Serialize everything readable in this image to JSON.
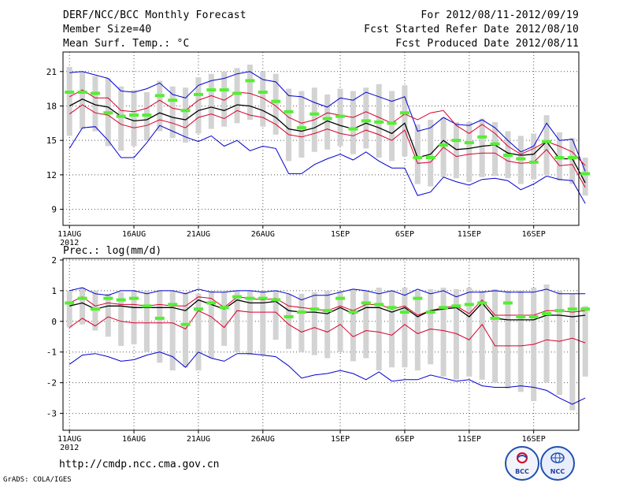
{
  "header": {
    "title": "DERF/NCC/BCC Monthly Forecast",
    "member_size": "Member Size=40",
    "variable": "Mean Surf. Temp.: °C",
    "period": "For 2012/08/11-2012/09/19",
    "started": "Fcst Started Refer Date 2012/08/10",
    "produced": "Fcst Produced Date 2012/08/11"
  },
  "precip_label": "Prec.: log(mm/d)",
  "footer": {
    "url": "http://cmdp.ncc.cma.gov.cn",
    "credit": "GrADS: COLA/IGES",
    "logo_bcc": "BCC",
    "logo_ncc": "NCC"
  },
  "colors": {
    "frame": "#000000",
    "grid": "#555555",
    "spread_bar": "#d3d3d3",
    "outer_bounds": "#0000d0",
    "inner_bounds": "#d8002a",
    "ensemble_mean": "#000000",
    "observed_marker": "#55ee33"
  },
  "chart_data": [
    {
      "type": "line",
      "title": "Mean Surf. Temp.",
      "ylabel": "°C",
      "ylim": [
        7.6,
        22.7
      ],
      "yticks": [
        9,
        12,
        15,
        18,
        21
      ],
      "xlim": [
        -0.5,
        39.5
      ],
      "xticks": [
        {
          "day": 0,
          "label": "11AUG",
          "sublabel": "2012"
        },
        {
          "day": 5,
          "label": "16AUG"
        },
        {
          "day": 10,
          "label": "21AUG"
        },
        {
          "day": 15,
          "label": "26AUG"
        },
        {
          "day": 21,
          "label": "1SEP"
        },
        {
          "day": 26,
          "label": "6SEP"
        },
        {
          "day": 31,
          "label": "11SEP"
        },
        {
          "day": 36,
          "label": "16SEP"
        }
      ],
      "grid": true,
      "series": [
        {
          "name": "ensemble max",
          "values": [
            20.9,
            21.0,
            20.7,
            20.4,
            19.3,
            19.2,
            19.5,
            20.0,
            19.0,
            18.7,
            19.8,
            20.2,
            20.4,
            20.8,
            21.0,
            20.3,
            20.1,
            18.9,
            18.8,
            18.3,
            17.9,
            18.7,
            18.5,
            19.2,
            18.8,
            18.4,
            18.8,
            15.8,
            16.1,
            17.0,
            16.4,
            16.3,
            16.8,
            16.1,
            15.0,
            14.0,
            14.5,
            16.5,
            15.0,
            15.1,
            12.3
          ]
        },
        {
          "name": "upper envelope",
          "values": [
            18.8,
            19.4,
            18.7,
            18.7,
            17.6,
            17.5,
            17.8,
            18.5,
            17.8,
            17.6,
            18.5,
            18.9,
            18.5,
            19.2,
            19.1,
            18.7,
            18.0,
            17.0,
            16.5,
            16.8,
            17.4,
            17.2,
            17.0,
            17.5,
            17.0,
            16.5,
            17.3,
            16.8,
            17.4,
            17.6,
            16.3,
            15.6,
            16.4,
            15.6,
            14.5,
            13.8,
            14.3,
            14.9,
            14.5,
            14.0,
            12.8
          ]
        },
        {
          "name": "ensemble mean",
          "values": [
            18.0,
            18.6,
            18.1,
            17.9,
            17.1,
            16.7,
            16.8,
            17.4,
            17.0,
            16.8,
            17.6,
            17.9,
            17.6,
            18.1,
            18.0,
            17.6,
            17.0,
            16.0,
            15.8,
            16.1,
            16.7,
            16.3,
            16.0,
            16.5,
            16.1,
            15.6,
            16.5,
            13.5,
            13.8,
            15.0,
            14.2,
            14.3,
            14.5,
            14.6,
            13.9,
            13.7,
            13.8,
            14.9,
            13.4,
            13.4,
            11.3
          ]
        },
        {
          "name": "lower envelope",
          "values": [
            17.3,
            18.1,
            17.4,
            17.2,
            16.4,
            16.1,
            16.3,
            16.8,
            16.5,
            16.1,
            17.0,
            17.3,
            16.9,
            17.6,
            17.2,
            17.0,
            16.4,
            15.5,
            15.3,
            15.6,
            16.0,
            15.6,
            15.4,
            15.9,
            15.5,
            15.0,
            15.9,
            13.0,
            13.1,
            14.4,
            13.6,
            13.8,
            13.9,
            13.9,
            13.2,
            13.0,
            13.1,
            14.2,
            12.8,
            12.9,
            10.9
          ]
        },
        {
          "name": "ensemble min",
          "values": [
            14.3,
            16.1,
            16.2,
            15.0,
            13.5,
            13.5,
            14.8,
            16.3,
            15.8,
            15.3,
            14.9,
            15.4,
            14.5,
            15.0,
            14.1,
            14.5,
            14.3,
            12.1,
            12.1,
            12.9,
            13.4,
            13.8,
            13.3,
            14.0,
            13.2,
            12.6,
            12.6,
            10.2,
            10.5,
            11.8,
            11.4,
            11.1,
            11.6,
            11.7,
            11.5,
            10.7,
            11.2,
            11.9,
            11.6,
            11.5,
            9.5
          ]
        }
      ],
      "spread_bars": [
        [
          15.4,
          21.4
        ],
        [
          16.0,
          21.0
        ],
        [
          15.8,
          20.6
        ],
        [
          14.5,
          20.4
        ],
        [
          14.1,
          19.7
        ],
        [
          14.5,
          19.4
        ],
        [
          15.0,
          19.2
        ],
        [
          15.8,
          20.2
        ],
        [
          15.2,
          19.7
        ],
        [
          14.8,
          19.6
        ],
        [
          15.6,
          20.5
        ],
        [
          16.0,
          20.8
        ],
        [
          16.2,
          21.0
        ],
        [
          16.5,
          21.3
        ],
        [
          16.8,
          21.6
        ],
        [
          16.2,
          21.0
        ],
        [
          15.5,
          20.8
        ],
        [
          13.2,
          19.5
        ],
        [
          13.5,
          19.3
        ],
        [
          14.0,
          19.6
        ],
        [
          14.2,
          19.0
        ],
        [
          14.5,
          19.5
        ],
        [
          13.8,
          19.3
        ],
        [
          14.3,
          19.6
        ],
        [
          13.5,
          19.9
        ],
        [
          13.2,
          19.3
        ],
        [
          13.6,
          19.8
        ],
        [
          11.2,
          16.4
        ],
        [
          11.0,
          16.8
        ],
        [
          11.8,
          17.0
        ],
        [
          11.7,
          16.6
        ],
        [
          11.4,
          16.6
        ],
        [
          11.8,
          16.9
        ],
        [
          11.9,
          16.6
        ],
        [
          11.7,
          15.8
        ],
        [
          11.2,
          15.4
        ],
        [
          11.6,
          15.6
        ],
        [
          12.0,
          17.2
        ],
        [
          11.5,
          15.7
        ],
        [
          11.2,
          15.2
        ],
        [
          10.2,
          13.5
        ]
      ],
      "observed": [
        19.2,
        19.2,
        19.1,
        17.4,
        17.1,
        17.2,
        17.2,
        18.9,
        18.5,
        17.6,
        19.0,
        19.4,
        19.4,
        19.1,
        20.2,
        19.2,
        18.4,
        17.5,
        16.1,
        17.3,
        16.9,
        17.1,
        16.0,
        16.7,
        16.6,
        16.5,
        17.4,
        13.5,
        13.5,
        14.6,
        15.0,
        14.8,
        15.3,
        14.7,
        13.7,
        13.4,
        13.1,
        14.9,
        13.5,
        13.5,
        12.1
      ]
    },
    {
      "type": "line",
      "title": "Prec.: log(mm/d)",
      "ylabel": "log(mm/d)",
      "ylim": [
        -3.55,
        2.05
      ],
      "yticks": [
        -3,
        -2,
        -1,
        0,
        1,
        2
      ],
      "xlim": [
        -0.5,
        39.5
      ],
      "xticks": [
        {
          "day": 0,
          "label": "11AUG",
          "sublabel": "2012"
        },
        {
          "day": 5,
          "label": "16AUG"
        },
        {
          "day": 10,
          "label": "21AUG"
        },
        {
          "day": 15,
          "label": "26AUG"
        },
        {
          "day": 21,
          "label": "1SEP"
        },
        {
          "day": 26,
          "label": "6SEP"
        },
        {
          "day": 31,
          "label": "11SEP"
        },
        {
          "day": 36,
          "label": "16SEP"
        }
      ],
      "grid": true,
      "series": [
        {
          "name": "ensemble max",
          "values": [
            1.0,
            1.1,
            0.9,
            0.85,
            1.0,
            1.0,
            0.9,
            1.0,
            1.0,
            0.9,
            1.05,
            0.95,
            0.95,
            1.0,
            1.0,
            0.95,
            1.0,
            0.9,
            0.7,
            0.85,
            0.85,
            0.95,
            1.05,
            1.0,
            0.9,
            1.0,
            0.85,
            1.05,
            0.9,
            1.0,
            0.8,
            0.95,
            0.95,
            1.0,
            0.95,
            0.95,
            0.95,
            1.05,
            0.9,
            0.9,
            0.9
          ]
        },
        {
          "name": "upper envelope",
          "values": [
            0.6,
            0.8,
            0.5,
            0.6,
            0.55,
            0.55,
            0.5,
            0.55,
            0.5,
            0.5,
            0.8,
            0.75,
            0.45,
            0.8,
            0.75,
            0.7,
            0.75,
            0.5,
            0.45,
            0.4,
            0.35,
            0.5,
            0.35,
            0.55,
            0.55,
            0.4,
            0.5,
            0.2,
            0.35,
            0.45,
            0.5,
            0.25,
            0.7,
            0.2,
            0.2,
            0.2,
            0.2,
            0.35,
            0.35,
            0.3,
            0.35
          ]
        },
        {
          "name": "ensemble mean",
          "values": [
            0.5,
            0.6,
            0.4,
            0.5,
            0.5,
            0.45,
            0.45,
            0.45,
            0.45,
            0.35,
            0.7,
            0.55,
            0.4,
            0.7,
            0.6,
            0.6,
            0.65,
            0.35,
            0.3,
            0.3,
            0.25,
            0.45,
            0.25,
            0.45,
            0.45,
            0.3,
            0.45,
            0.15,
            0.35,
            0.4,
            0.45,
            0.15,
            0.6,
            0.1,
            0.05,
            0.05,
            0.05,
            0.2,
            0.2,
            0.15,
            0.2
          ]
        },
        {
          "name": "lower envelope",
          "values": [
            -0.2,
            0.1,
            -0.15,
            0.15,
            0.0,
            -0.05,
            -0.05,
            -0.05,
            -0.05,
            -0.25,
            0.35,
            0.15,
            -0.2,
            0.35,
            0.3,
            0.3,
            0.3,
            -0.1,
            -0.35,
            -0.2,
            -0.35,
            -0.1,
            -0.5,
            -0.3,
            -0.35,
            -0.45,
            -0.1,
            -0.4,
            -0.25,
            -0.3,
            -0.4,
            -0.6,
            -0.1,
            -0.8,
            -0.8,
            -0.8,
            -0.75,
            -0.6,
            -0.65,
            -0.55,
            -0.7
          ]
        },
        {
          "name": "ensemble min",
          "values": [
            -1.4,
            -1.1,
            -1.05,
            -1.15,
            -1.3,
            -1.25,
            -1.1,
            -1.0,
            -1.15,
            -1.5,
            -1.0,
            -1.2,
            -1.3,
            -1.05,
            -1.05,
            -1.1,
            -1.15,
            -1.45,
            -1.85,
            -1.75,
            -1.7,
            -1.6,
            -1.7,
            -1.9,
            -1.65,
            -1.95,
            -1.9,
            -1.9,
            -1.75,
            -1.85,
            -1.95,
            -1.9,
            -2.1,
            -2.15,
            -2.15,
            -2.1,
            -2.15,
            -2.25,
            -2.5,
            -2.7,
            -2.5
          ]
        }
      ],
      "spread_bars": [
        [
          -0.2,
          1.0
        ],
        [
          -0.1,
          1.1
        ],
        [
          -0.3,
          1.0
        ],
        [
          -0.5,
          0.9
        ],
        [
          -0.8,
          0.95
        ],
        [
          -0.75,
          1.0
        ],
        [
          -1.0,
          1.0
        ],
        [
          -1.35,
          1.0
        ],
        [
          -1.6,
          1.0
        ],
        [
          -1.5,
          0.95
        ],
        [
          -1.6,
          0.9
        ],
        [
          -1.2,
          1.0
        ],
        [
          -0.8,
          0.95
        ],
        [
          -1.0,
          1.0
        ],
        [
          -1.1,
          1.0
        ],
        [
          -1.1,
          1.0
        ],
        [
          -0.6,
          1.0
        ],
        [
          -0.9,
          0.9
        ],
        [
          -1.0,
          0.9
        ],
        [
          -1.1,
          0.95
        ],
        [
          -1.2,
          1.0
        ],
        [
          -1.0,
          1.0
        ],
        [
          -1.3,
          1.05
        ],
        [
          -1.2,
          1.0
        ],
        [
          -1.6,
          1.1
        ],
        [
          -1.5,
          1.0
        ],
        [
          -1.5,
          1.1
        ],
        [
          -1.6,
          1.0
        ],
        [
          -1.4,
          1.05
        ],
        [
          -1.8,
          1.1
        ],
        [
          -1.9,
          1.05
        ],
        [
          -1.8,
          1.1
        ],
        [
          -1.9,
          1.0
        ],
        [
          -2.0,
          1.05
        ],
        [
          -2.2,
          1.0
        ],
        [
          -2.3,
          1.0
        ],
        [
          -2.6,
          1.1
        ],
        [
          -2.0,
          1.2
        ],
        [
          -2.4,
          1.0
        ],
        [
          -2.9,
          0.9
        ],
        [
          -1.8,
          0.5
        ]
      ],
      "observed": [
        0.6,
        0.75,
        0.4,
        0.75,
        0.7,
        0.75,
        0.5,
        0.1,
        0.55,
        -0.1,
        0.4,
        0.6,
        0.45,
        0.8,
        0.75,
        0.75,
        0.7,
        0.15,
        0.3,
        0.4,
        0.35,
        0.75,
        0.3,
        0.6,
        0.55,
        0.45,
        0.3,
        0.75,
        0.3,
        0.45,
        0.5,
        0.55,
        0.6,
        0.1,
        0.6,
        0.15,
        0.15,
        0.25,
        0.35,
        0.4,
        0.4
      ]
    }
  ]
}
